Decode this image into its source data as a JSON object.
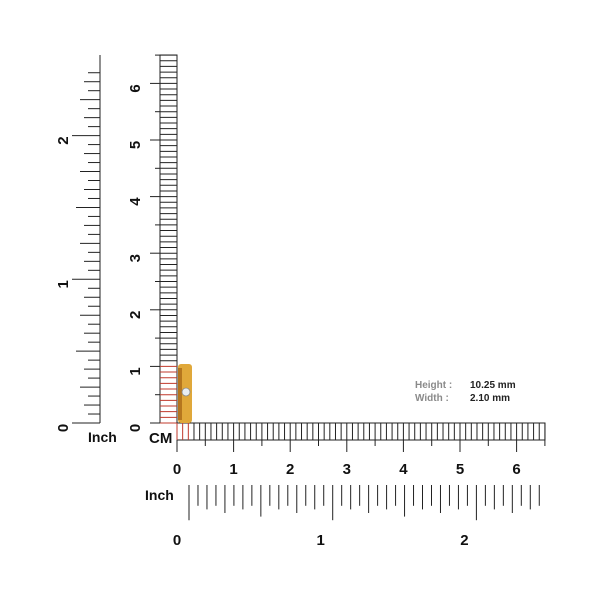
{
  "rulers": {
    "cm_label": "CM",
    "inch_label": "Inch",
    "cm_ticks": [
      "0",
      "1",
      "2",
      "3",
      "4",
      "5",
      "6"
    ],
    "inch_ticks": [
      "0",
      "1",
      "2"
    ],
    "highlight_color": "#c0392b"
  },
  "product": {
    "name": "gold ring with stone",
    "color": "#e0a83a"
  },
  "dimensions": {
    "height_label": "Height :",
    "height_value": "10.25 mm",
    "width_label": "Width :",
    "width_value": "2.10 mm"
  }
}
